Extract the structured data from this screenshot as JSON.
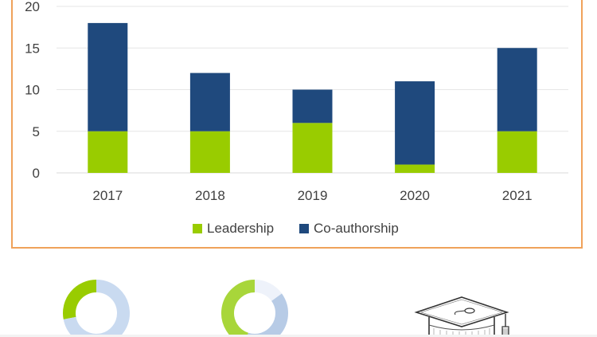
{
  "chart_data": {
    "type": "bar",
    "stacked": true,
    "categories": [
      "2017",
      "2018",
      "2019",
      "2020",
      "2021"
    ],
    "series": [
      {
        "name": "Leadership",
        "values": [
          5,
          5,
          6,
          1,
          5
        ]
      },
      {
        "name": "Co-authorship",
        "values": [
          13,
          7,
          4,
          10,
          10
        ]
      }
    ],
    "ylim": [
      0,
      20
    ],
    "yticks": [
      "0",
      "5",
      "10",
      "15",
      "20"
    ],
    "grid": true,
    "legend": "bottom",
    "colors": {
      "Leadership": "#99cc00",
      "Co-authorship": "#1f497d"
    }
  },
  "donut_charts": [
    {
      "segments": [
        0.28,
        0.72
      ],
      "colors": [
        "#99cc00",
        "#c9daf0"
      ]
    },
    {
      "segments": [
        0.45,
        0.4,
        0.15
      ],
      "colors": [
        "#a8d63a",
        "#b7cbe6",
        "#eef2fa"
      ]
    }
  ],
  "icons": {
    "graduation": "graduation-cap-icon"
  }
}
